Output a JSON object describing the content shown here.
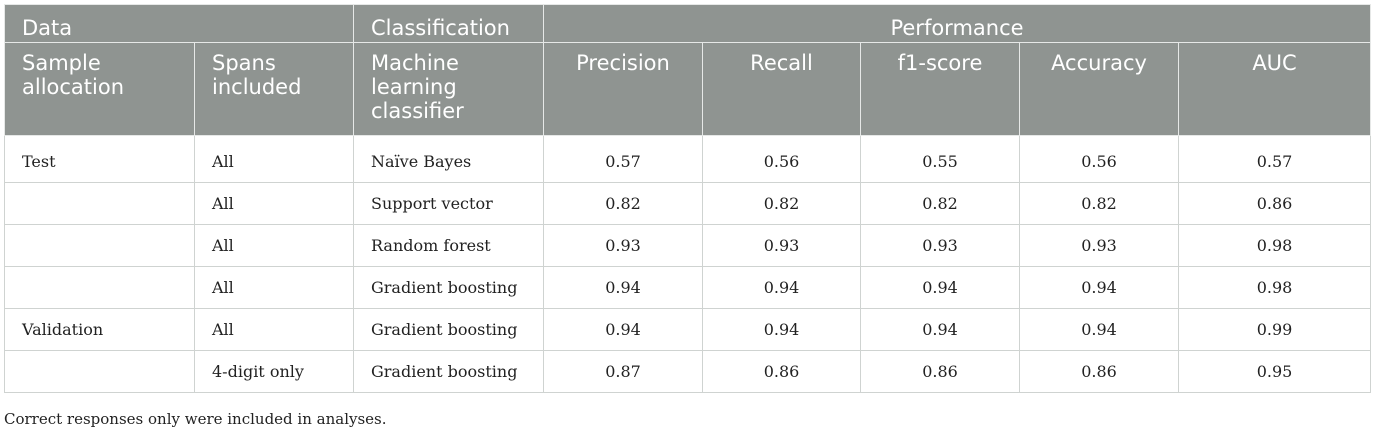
{
  "table": {
    "group_headers": {
      "data": "Data",
      "classification": "Classification",
      "performance": "Performance"
    },
    "columns": {
      "sample_allocation": "Sample allocation",
      "spans_included": "Spans included",
      "classifier": "Machine learning classifier",
      "precision": "Precision",
      "recall": "Recall",
      "f1": "f1-score",
      "accuracy": "Accuracy",
      "auc": "AUC"
    },
    "rows": [
      {
        "allocation": "Test",
        "spans": "All",
        "classifier": "Naïve Bayes",
        "precision": "0.57",
        "recall": "0.56",
        "f1": "0.55",
        "accuracy": "0.56",
        "auc": "0.57"
      },
      {
        "allocation": "",
        "spans": "All",
        "classifier": "Support vector",
        "precision": "0.82",
        "recall": "0.82",
        "f1": "0.82",
        "accuracy": "0.82",
        "auc": "0.86"
      },
      {
        "allocation": "",
        "spans": "All",
        "classifier": "Random forest",
        "precision": "0.93",
        "recall": "0.93",
        "f1": "0.93",
        "accuracy": "0.93",
        "auc": "0.98"
      },
      {
        "allocation": "",
        "spans": "All",
        "classifier": "Gradient boosting",
        "precision": "0.94",
        "recall": "0.94",
        "f1": "0.94",
        "accuracy": "0.94",
        "auc": "0.98"
      },
      {
        "allocation": "Validation",
        "spans": "All",
        "classifier": "Gradient boosting",
        "precision": "0.94",
        "recall": "0.94",
        "f1": "0.94",
        "accuracy": "0.94",
        "auc": "0.99"
      },
      {
        "allocation": "",
        "spans": "4-digit only",
        "classifier": "Gradient boosting",
        "precision": "0.87",
        "recall": "0.86",
        "f1": "0.86",
        "accuracy": "0.86",
        "auc": "0.95"
      }
    ]
  },
  "footnote": "Correct responses only were included in analyses."
}
